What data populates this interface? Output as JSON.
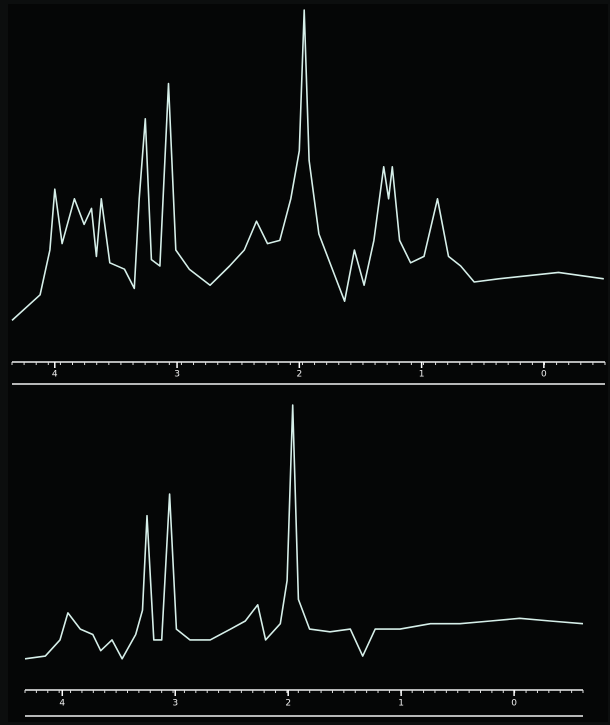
{
  "chart_data": [
    {
      "type": "line",
      "color": "#d6efe9",
      "xlim": [
        4.35,
        -0.5
      ],
      "ylim": [
        0,
        100
      ],
      "xticks": [
        4,
        3,
        2,
        1,
        0
      ],
      "x": [
        4.35,
        4.12,
        4.04,
        4.0,
        3.94,
        3.84,
        3.76,
        3.7,
        3.66,
        3.62,
        3.55,
        3.43,
        3.35,
        3.31,
        3.26,
        3.21,
        3.14,
        3.07,
        3.01,
        2.9,
        2.73,
        2.57,
        2.45,
        2.35,
        2.26,
        2.16,
        2.07,
        2.0,
        1.96,
        1.92,
        1.84,
        1.71,
        1.63,
        1.55,
        1.47,
        1.39,
        1.31,
        1.27,
        1.24,
        1.18,
        1.09,
        0.98,
        0.87,
        0.78,
        0.68,
        0.57,
        0.37,
        0.12,
        -0.12,
        -0.49
      ],
      "values": [
        3,
        11,
        25,
        44,
        27,
        41,
        33,
        38,
        23,
        41,
        21,
        19,
        13,
        41,
        66,
        22,
        20,
        77,
        25,
        19,
        14,
        20,
        25,
        34,
        27,
        28,
        41,
        56,
        100,
        53,
        30,
        17,
        9,
        25,
        14,
        28,
        51,
        41,
        51,
        28,
        21,
        23,
        41,
        23,
        20,
        15,
        16,
        17,
        18,
        16
      ]
    },
    {
      "type": "line",
      "color": "#d6efe9",
      "xlim": [
        4.33,
        -0.61
      ],
      "ylim": [
        0,
        100
      ],
      "xticks": [
        4,
        3,
        2,
        1,
        0
      ],
      "x": [
        4.33,
        4.15,
        4.02,
        3.95,
        3.84,
        3.73,
        3.66,
        3.56,
        3.47,
        3.35,
        3.29,
        3.25,
        3.19,
        3.12,
        3.05,
        2.99,
        2.87,
        2.69,
        2.51,
        2.38,
        2.27,
        2.2,
        2.07,
        2.01,
        1.96,
        1.91,
        1.81,
        1.63,
        1.45,
        1.34,
        1.23,
        1.01,
        0.74,
        0.48,
        0.21,
        -0.05,
        -0.32,
        -0.61
      ],
      "values": [
        6,
        7,
        13,
        23,
        17,
        15,
        9,
        13,
        6,
        15,
        24,
        59,
        13,
        13,
        67,
        17,
        13,
        13,
        17,
        20,
        26,
        13,
        19,
        35,
        100,
        28,
        17,
        16,
        17,
        7,
        17,
        17,
        19,
        19,
        20,
        21,
        20,
        19
      ]
    }
  ]
}
